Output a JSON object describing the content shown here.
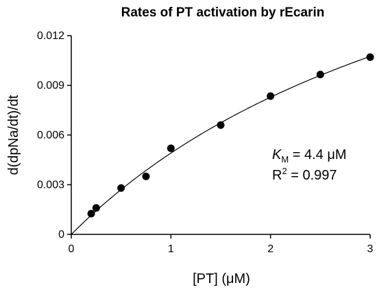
{
  "chart_data": {
    "type": "scatter",
    "title": "Rates of PT activation by rEcarin",
    "xlabel": "[PT] (μM)",
    "ylabel": "d(dpNa/dt)/dt",
    "xlim": [
      0,
      3
    ],
    "ylim": [
      0,
      0.012
    ],
    "x_ticks": [
      "0",
      "1",
      "2",
      "3"
    ],
    "y_ticks": [
      "0",
      "0.003",
      "0.006",
      "0.009",
      "0.012"
    ],
    "x_tick_values": [
      0,
      1,
      2,
      3
    ],
    "y_tick_values": [
      0,
      0.003,
      0.006,
      0.009,
      0.012
    ],
    "grid": false,
    "series": [
      {
        "x": [
          0.2,
          0.25,
          0.5,
          0.75,
          1.0,
          1.5,
          2.0,
          2.5,
          3.0
        ],
        "y": [
          0.00125,
          0.0016,
          0.0028,
          0.0035,
          0.0052,
          0.0066,
          0.00835,
          0.00965,
          0.0107
        ]
      }
    ],
    "fit": {
      "model": "michaelis-menten",
      "vmax": 0.0265,
      "km": 4.4
    },
    "annotations": {
      "km_symbol": "K",
      "km_subscript": "M",
      "km_value": " = 4.4 μM",
      "r2_symbol": "R",
      "r2_superscript": "2",
      "r2_value": " = 0.997"
    }
  }
}
